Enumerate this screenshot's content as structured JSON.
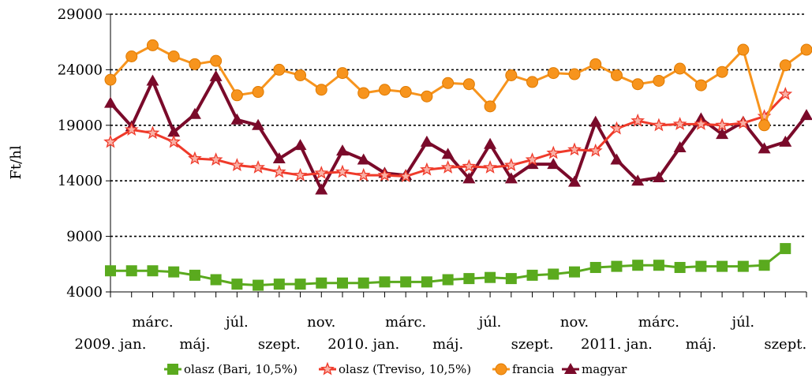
{
  "chart_data": {
    "type": "line",
    "ylabel": "Ft/hl",
    "ylim": [
      4000,
      29000
    ],
    "yticks": [
      4000,
      9000,
      14000,
      19000,
      24000,
      29000
    ],
    "grid": "horizontal dotted",
    "legend_position": "bottom",
    "x_axis_labels": {
      "upper_row": [
        {
          "index": 2,
          "label": "márc."
        },
        {
          "index": 6,
          "label": "júl."
        },
        {
          "index": 10,
          "label": "nov."
        },
        {
          "index": 14,
          "label": "márc."
        },
        {
          "index": 18,
          "label": "júl."
        },
        {
          "index": 22,
          "label": "nov."
        },
        {
          "index": 26,
          "label": "márc."
        },
        {
          "index": 30,
          "label": "júl."
        }
      ],
      "lower_row": [
        {
          "index": 0,
          "label": "2009. jan."
        },
        {
          "index": 4,
          "label": "máj."
        },
        {
          "index": 8,
          "label": "szept."
        },
        {
          "index": 12,
          "label": "2010. jan."
        },
        {
          "index": 16,
          "label": "máj."
        },
        {
          "index": 20,
          "label": "szept."
        },
        {
          "index": 24,
          "label": "2011. jan."
        },
        {
          "index": 28,
          "label": "máj."
        },
        {
          "index": 32,
          "label": "szept."
        }
      ]
    },
    "series": [
      {
        "name": "olasz (Bari, 10,5%)",
        "color": "#5aaa1e",
        "marker": "square",
        "values": [
          5900,
          5900,
          5900,
          5800,
          5500,
          5100,
          4700,
          4600,
          4700,
          4700,
          4800,
          4800,
          4800,
          4900,
          4900,
          4900,
          5100,
          5200,
          5300,
          5200,
          5500,
          5600,
          5800,
          6200,
          6300,
          6400,
          6400,
          6200,
          6300,
          6300,
          6300,
          6400,
          7900
        ]
      },
      {
        "name": "olasz (Treviso, 10,5%)",
        "color": "#ef3a2a",
        "marker": "star",
        "values": [
          17500,
          18600,
          18300,
          17500,
          16000,
          15900,
          15400,
          15200,
          14800,
          14500,
          14700,
          14800,
          14500,
          14500,
          14400,
          15000,
          15200,
          15300,
          15200,
          15400,
          15900,
          16500,
          16800,
          16700,
          18700,
          19400,
          19000,
          19100,
          19100,
          19000,
          19200,
          19800,
          21800
        ]
      },
      {
        "name": "francia",
        "color": "#f7941d",
        "marker": "circle",
        "values": [
          23100,
          25200,
          26200,
          25200,
          24500,
          24800,
          21700,
          22000,
          24000,
          23500,
          22200,
          23700,
          21900,
          22200,
          22000,
          21600,
          22800,
          22700,
          20700,
          23500,
          22900,
          23700,
          23600,
          24500,
          23500,
          22700,
          23000,
          24100,
          22600,
          23800,
          25800,
          19000,
          24400,
          25800
        ]
      },
      {
        "name": "magyar",
        "color": "#7a0a2a",
        "marker": "triangle",
        "values": [
          21000,
          18900,
          23000,
          18400,
          20000,
          23400,
          19500,
          19000,
          16000,
          17200,
          13200,
          16700,
          15900,
          14700,
          14500,
          17500,
          16400,
          14200,
          17300,
          14200,
          15500,
          15500,
          13900,
          19300,
          15900,
          14000,
          14300,
          17000,
          19600,
          18200,
          19300,
          16900,
          17500,
          19900
        ]
      }
    ]
  }
}
